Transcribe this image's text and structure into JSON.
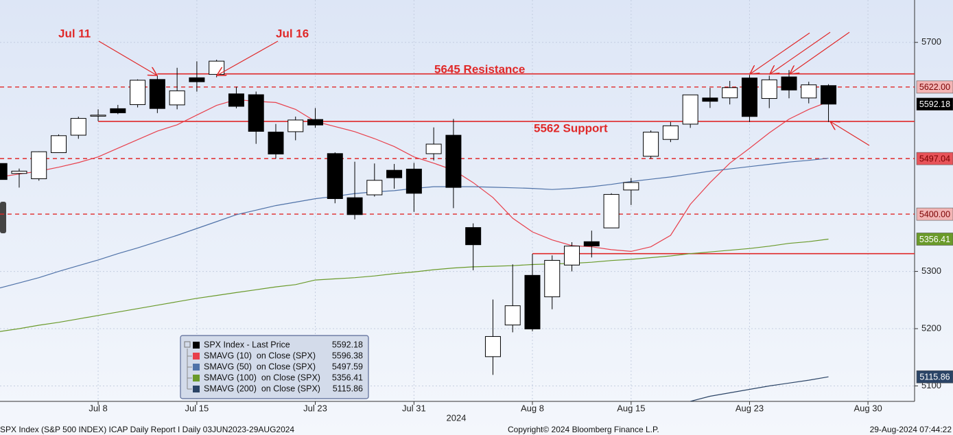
{
  "chart_data": {
    "type": "candlestick",
    "categories": [
      null,
      null,
      null,
      null,
      null,
      "Jul 8",
      null,
      null,
      null,
      null,
      "Jul 15",
      null,
      null,
      null,
      null,
      null,
      "Jul 23",
      null,
      null,
      null,
      null,
      "Jul 31",
      null,
      null,
      null,
      null,
      null,
      "Aug 8",
      null,
      null,
      null,
      null,
      "Aug 15",
      null,
      null,
      null,
      null,
      null,
      "Aug 23",
      null,
      null,
      null,
      null,
      null,
      "Aug 30"
    ],
    "year_label": "2024",
    "open": [
      5488.5,
      5471.1,
      5461.8,
      5507.4,
      5537.9,
      5572.8,
      5584.2,
      5591.3,
      5635.2,
      5590.8,
      5638.2,
      5644.1,
      5610.1,
      5608.6,
      5543.4,
      5544.0,
      5565.3,
      5505.8,
      5428.7,
      5433.7,
      5476.6,
      5478.7,
      5505.6,
      5537.8,
      5376.6,
      5151.1,
      5206.4,
      5293.1,
      5255.6,
      5311.1,
      5351.9,
      5376.0,
      5442.2,
      5501.1,
      5530.5,
      5557.2,
      5602.9,
      5603.1,
      5637.8,
      5602.0,
      5639.7,
      5602.9,
      5624.5,
      null,
      null
    ],
    "high": [
      5523.6,
      5479.6,
      5509.7,
      5539.3,
      5570.3,
      5583.1,
      5590.8,
      5635.4,
      5642.5,
      5655.6,
      5666.9,
      5669.7,
      5622.5,
      5614.1,
      5557.5,
      5570.4,
      5585.3,
      5508.0,
      5491.6,
      5488.5,
      5487.7,
      5489.5,
      5551.5,
      5566.2,
      5383.9,
      5250.9,
      5312.3,
      5330.6,
      5328.0,
      5351.0,
      5371.2,
      5436.5,
      5463.2,
      5546.2,
      5561.0,
      5608.3,
      5620.5,
      5632.7,
      5643.2,
      5641.8,
      5651.6,
      5631.2,
      5627.0,
      null,
      null
    ],
    "low": [
      5451.1,
      5446.4,
      5458.4,
      5507.4,
      5531.6,
      5562.5,
      5574.6,
      5586.4,
      5576.5,
      5583.1,
      5614.0,
      5639.0,
      5584.8,
      5522.8,
      5497.0,
      5529.0,
      5550.9,
      5419.0,
      5390.9,
      5430.7,
      5444.4,
      5403.9,
      5493.8,
      5410.4,
      5302.0,
      5119.3,
      5193.6,
      5195.5,
      5233.9,
      5300.0,
      5324.4,
      5376.0,
      5415.9,
      5497.0,
      5525.8,
      5550.7,
      5585.5,
      5591.6,
      5560.9,
      5585.2,
      5602.3,
      5593.5,
      5560.9,
      null,
      null
    ],
    "close": [
      5460.5,
      5475.1,
      5509.0,
      5537.0,
      5567.2,
      5572.9,
      5577.0,
      5633.9,
      5584.5,
      5615.4,
      5631.2,
      5667.2,
      5588.3,
      5544.6,
      5505.0,
      5564.4,
      5555.7,
      5427.1,
      5399.2,
      5459.1,
      5463.5,
      5436.4,
      5522.3,
      5446.7,
      5346.6,
      5186.3,
      5240.0,
      5199.5,
      5319.3,
      5344.2,
      5344.4,
      5434.4,
      5455.2,
      5543.2,
      5554.3,
      5608.3,
      5597.1,
      5620.9,
      5570.6,
      5634.6,
      5616.8,
      5625.8,
      5592.18,
      null,
      null
    ],
    "price_name": "SPX Index - Last Price",
    "series": [
      {
        "name": "SMAVG (10)  on Close (SPX)",
        "color": "#e8404c",
        "values": [
          5465,
          5470,
          5475,
          5482,
          5490,
          5500,
          5515,
          5530,
          5545,
          5556,
          5573,
          5590,
          5600,
          5597,
          5595,
          5583,
          5562,
          5553,
          5544,
          5532,
          5518,
          5500,
          5489,
          5477,
          5455,
          5429,
          5393,
          5369,
          5355,
          5345,
          5343,
          5338,
          5335,
          5343,
          5363,
          5417,
          5455,
          5489,
          5515,
          5542,
          5566,
          5583,
          5596.38,
          null,
          null
        ]
      },
      {
        "name": "SMAVG (50)  on Close (SPX)",
        "color": "#4f72a8",
        "values": [
          5271,
          5280,
          5289,
          5300,
          5310,
          5320,
          5331,
          5341,
          5352,
          5363,
          5375,
          5387,
          5399,
          5407,
          5415,
          5421,
          5427,
          5431,
          5436,
          5439,
          5441,
          5445,
          5448,
          5448,
          5448,
          5447,
          5446,
          5445,
          5443,
          5445,
          5448,
          5452,
          5457,
          5461,
          5465,
          5470,
          5475,
          5479,
          5483,
          5487,
          5491,
          5494,
          5497.59,
          null,
          null
        ]
      },
      {
        "name": "SMAVG (100)  on Close (SPX)",
        "color": "#6a9a2a",
        "values": [
          5195,
          5200,
          5206,
          5211,
          5217,
          5223,
          5229,
          5235,
          5241,
          5247,
          5253,
          5258,
          5263,
          5268,
          5273,
          5277,
          5285,
          5287,
          5289,
          5292,
          5296,
          5299,
          5303,
          5306,
          5308,
          5309,
          5310,
          5312,
          5313,
          5314,
          5316,
          5319,
          5321,
          5324,
          5327,
          5331,
          5334,
          5337,
          5340,
          5344,
          5349,
          5352,
          5356.41,
          null,
          null
        ]
      },
      {
        "name": "SMAVG (200)  on Close (SPX)",
        "color": "#2b4466",
        "values": [
          null,
          null,
          null,
          null,
          null,
          null,
          null,
          null,
          null,
          null,
          null,
          null,
          null,
          null,
          null,
          null,
          null,
          null,
          null,
          null,
          null,
          null,
          null,
          null,
          null,
          null,
          null,
          null,
          null,
          null,
          null,
          null,
          null,
          null,
          null,
          5073,
          5082,
          5088,
          5094,
          5100,
          5105,
          5110,
          5115.86,
          null,
          null
        ]
      }
    ],
    "price_color": "#000000",
    "hlines": [
      {
        "value": 5645,
        "style": "solid",
        "color": "#e02828",
        "from_index": 8
      },
      {
        "value": 5622,
        "label": "5622.00",
        "style": "dashed",
        "color": "#e02828",
        "box": "#f2b4b4"
      },
      {
        "value": 5562,
        "style": "solid",
        "color": "#e02828",
        "from_index": 5
      },
      {
        "value": 5497.04,
        "style": "dashed",
        "color": "#e02828",
        "box": "#e8545a"
      },
      {
        "value": 5400,
        "label": "5400.00",
        "style": "dashed",
        "color": "#e02828",
        "box": "#f2b4b4"
      },
      {
        "value": 5331,
        "style": "solid",
        "color": "#e02828",
        "from_index": 27
      }
    ],
    "annotations": [
      "Jul 11",
      "Jul 16",
      "5645 Resistance",
      "5562 Support"
    ],
    "ylim": [
      5073,
      5774
    ],
    "yticks": [
      5100,
      5200,
      5300,
      5700
    ],
    "grid": true,
    "footer": [
      "SPX Index (S&P 500 INDEX) ICAP Daily Report I  Daily 03JUN2023-29AUG2024",
      "Copyright© 2024 Bloomberg Finance L.P.",
      "29-Aug-2024 07:44:22"
    ]
  }
}
